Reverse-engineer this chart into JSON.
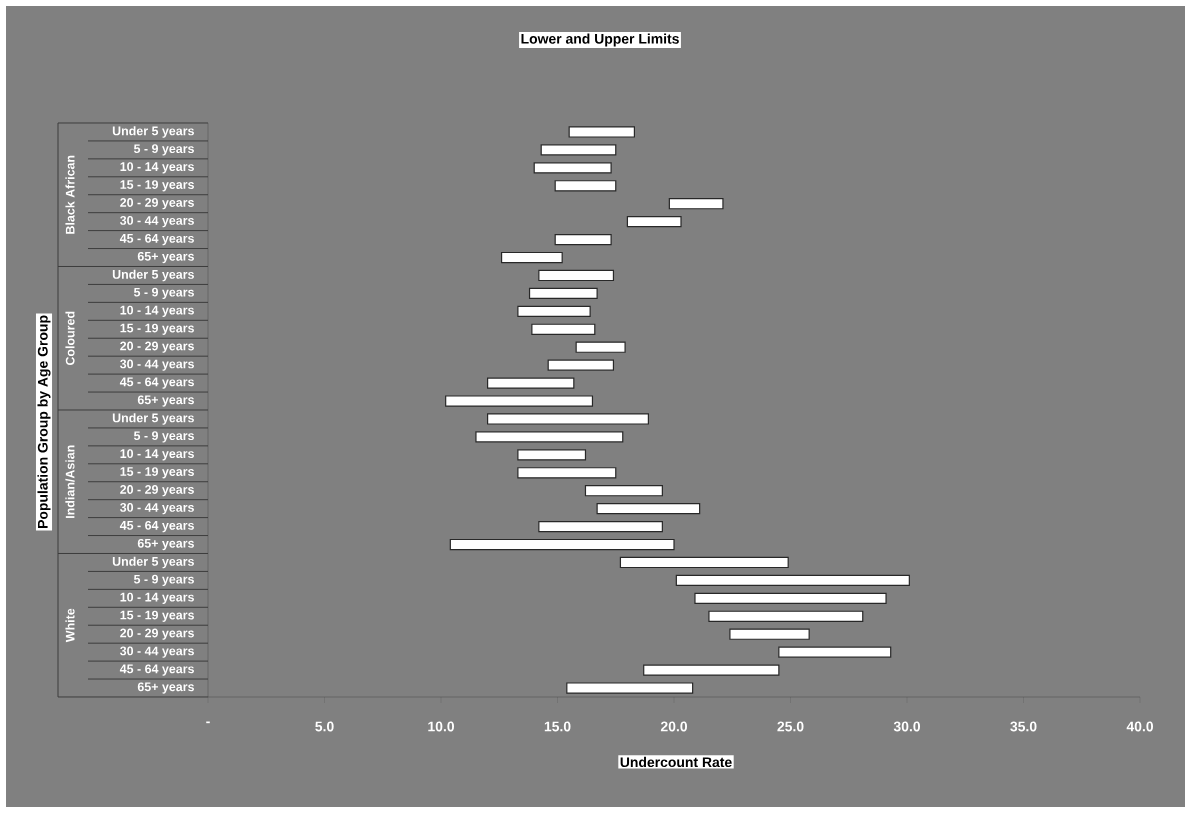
{
  "chart_data": {
    "type": "bar",
    "orientation": "horizontal",
    "title": "Lower and Upper Limits",
    "xlabel": "Undercount Rate",
    "ylabel": "Population Group by Age Group",
    "annotations": [
      "Black African",
      "Coloured",
      "Indian/Asian",
      "White"
    ],
    "categories": [
      "Under 5 years",
      "5 - 9 years",
      "10 - 14 years",
      "15 - 19 years",
      "20 - 29 years",
      "30 - 44 years",
      "45 - 64 years",
      "65+ years",
      "Under 5 years",
      "5 - 9 years",
      "10 - 14 years",
      "15 - 19 years",
      "20 - 29 years",
      "30 - 44 years",
      "45 - 64 years",
      "65+ years",
      "Under 5 years",
      "5 - 9 years",
      "10 - 14 years",
      "15 - 19 years",
      "20 - 29 years",
      "30 - 44 years",
      "45 - 64 years",
      "65+ years",
      "Under 5 years",
      "5 - 9 years",
      "10 - 14 years",
      "15 - 19 years",
      "20 - 29 years",
      "30 - 44 years",
      "45 - 64 years",
      "65+ years"
    ],
    "base": [
      15.5,
      14.3,
      14.0,
      14.9,
      19.8,
      18.0,
      14.9,
      12.6,
      14.2,
      13.8,
      13.3,
      13.9,
      15.8,
      14.6,
      12.0,
      10.2,
      12.0,
      11.5,
      13.3,
      13.3,
      16.2,
      16.7,
      14.2,
      10.4,
      17.7,
      20.1,
      20.9,
      21.5,
      22.4,
      24.5,
      18.7,
      15.4
    ],
    "values": [
      2.8,
      3.2,
      3.3,
      2.6,
      2.3,
      2.3,
      2.4,
      2.6,
      3.2,
      2.9,
      3.1,
      2.7,
      2.1,
      2.8,
      3.7,
      6.3,
      6.9,
      6.3,
      2.9,
      4.2,
      3.3,
      4.4,
      5.3,
      9.6,
      7.2,
      10.0,
      8.2,
      6.6,
      3.4,
      4.8,
      5.8,
      5.4
    ],
    "color": "#ffffff",
    "xlim": [
      0,
      40
    ],
    "xticks": [
      {
        "value": 0,
        "label": "-"
      },
      {
        "value": 5,
        "label": "5.0"
      },
      {
        "value": 10,
        "label": "10.0"
      },
      {
        "value": 15,
        "label": "15.0"
      },
      {
        "value": 20,
        "label": "20.0"
      },
      {
        "value": 25,
        "label": "25.0"
      },
      {
        "value": 30,
        "label": "30.0"
      },
      {
        "value": 35,
        "label": "35.0"
      },
      {
        "value": 40,
        "label": "40.0"
      }
    ]
  }
}
